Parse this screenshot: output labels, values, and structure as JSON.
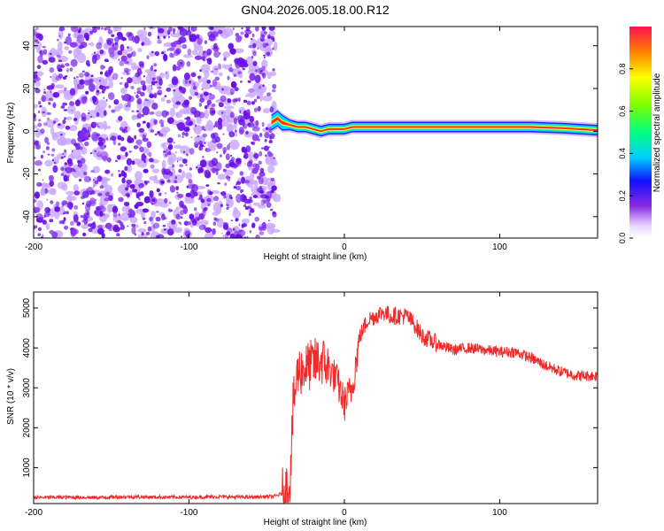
{
  "title": "GN04.2026.005.18.00.R12",
  "colors": {
    "snr_line": "#ee2a2a",
    "scatter_dense": "#6a10e6",
    "scatter_light": "#c9a6ff",
    "background": "#ffffff"
  },
  "chart_data": [
    {
      "type": "heatmap",
      "title": "GN04.2026.005.18.00.R12",
      "xlabel": "Height of straight line (km)",
      "ylabel": "Frequency (Hz)",
      "xlim": [
        -200,
        163
      ],
      "ylim": [
        -50,
        49
      ],
      "x_ticks": [
        -200,
        -100,
        0,
        100
      ],
      "x_tick_labels": [
        "-200",
        "-100",
        "0",
        "100"
      ],
      "y_ticks": [
        -40,
        -20,
        0,
        20,
        40
      ],
      "y_tick_labels": [
        "-40",
        "-20",
        "0",
        "20",
        "40"
      ],
      "noise_region_x": [
        -200,
        -45
      ],
      "signal_track": {
        "x": [
          -47,
          -43,
          -40,
          -35,
          -30,
          -25,
          -20,
          -15,
          -10,
          -5,
          0,
          5,
          10,
          20,
          40,
          60,
          80,
          100,
          120,
          140,
          163
        ],
        "frequency": [
          4,
          6,
          4,
          3,
          2,
          2,
          1,
          0,
          1,
          1,
          1,
          2,
          2,
          2,
          2,
          2,
          2,
          2,
          2,
          1.5,
          0.5
        ]
      },
      "colorbar": {
        "label": "Normalized spectral amplitude",
        "range": [
          0,
          1
        ],
        "ticks": [
          0.0,
          0.2,
          0.4,
          0.6,
          0.8
        ],
        "tick_labels": [
          "0.0",
          "0.2",
          "0.4",
          "0.6",
          "0.8"
        ]
      }
    },
    {
      "type": "line",
      "xlabel": "Height of straight line (km)",
      "ylabel": "SNR (10 * v/v)",
      "xlim": [
        -200,
        163
      ],
      "ylim": [
        100,
        5400
      ],
      "x_ticks": [
        -200,
        -100,
        0,
        100
      ],
      "x_tick_labels": [
        "-200",
        "-100",
        "0",
        "100"
      ],
      "y_ticks": [
        1000,
        2000,
        3000,
        4000,
        5000
      ],
      "y_tick_labels": [
        "1000",
        "2000",
        "3000",
        "4000",
        "5000"
      ],
      "series": [
        {
          "name": "SNR",
          "x": [
            -200,
            -180,
            -160,
            -140,
            -120,
            -100,
            -80,
            -60,
            -45,
            -40,
            -35,
            -33,
            -30,
            -25,
            -20,
            -15,
            -10,
            -5,
            0,
            5,
            10,
            15,
            20,
            25,
            30,
            35,
            40,
            45,
            50,
            55,
            60,
            70,
            80,
            90,
            100,
            110,
            120,
            130,
            140,
            150,
            163
          ],
          "y": [
            250,
            260,
            250,
            270,
            260,
            260,
            270,
            260,
            280,
            350,
            600,
            2500,
            3400,
            3500,
            3600,
            3700,
            3500,
            3200,
            2600,
            3000,
            4300,
            4700,
            4800,
            4900,
            4800,
            4800,
            4800,
            4600,
            4300,
            4200,
            4100,
            3950,
            4000,
            3950,
            3900,
            3900,
            3750,
            3550,
            3400,
            3300,
            3300
          ]
        }
      ]
    }
  ]
}
